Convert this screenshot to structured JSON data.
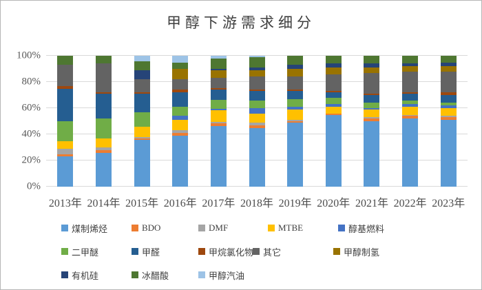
{
  "chart_data": {
    "type": "bar",
    "subtype": "stacked-100-percent",
    "title": "甲醇下游需求细分",
    "xlabel": "",
    "ylabel": "",
    "ylim": [
      0,
      100
    ],
    "grid": "horizontal",
    "legend_position": "bottom",
    "y_ticks": [
      "0%",
      "20%",
      "40%",
      "60%",
      "80%",
      "100%"
    ],
    "categories": [
      "2013年",
      "2014年",
      "2015年",
      "2016年",
      "2017年",
      "2018年",
      "2019年",
      "2020年",
      "2021年",
      "2022年",
      "2023年"
    ],
    "series": [
      {
        "name": "煤制烯烃",
        "color": "#5B9BD5",
        "values": [
          23,
          26,
          36,
          39,
          47,
          45,
          49,
          55,
          50,
          52,
          51
        ]
      },
      {
        "name": "BDO",
        "color": "#ED7D31",
        "values": [
          2,
          2,
          1,
          2,
          2,
          2,
          1,
          1,
          2,
          2,
          2
        ]
      },
      {
        "name": "DMF",
        "color": "#A5A5A5",
        "values": [
          4,
          2,
          1,
          2,
          1,
          2,
          1,
          0,
          1,
          1,
          1
        ]
      },
      {
        "name": "MTBE",
        "color": "#FFC000",
        "values": [
          6,
          7,
          8,
          8,
          9,
          7,
          8,
          5,
          6,
          6,
          6
        ]
      },
      {
        "name": "醇基燃料",
        "color": "#4472C4",
        "values": [
          0,
          0,
          0,
          3,
          1,
          4,
          2,
          2,
          1,
          2,
          2
        ]
      },
      {
        "name": "二甲醚",
        "color": "#70AD47",
        "values": [
          15,
          15,
          11,
          7,
          7,
          6,
          6,
          5,
          4,
          3,
          2
        ]
      },
      {
        "name": "甲醛",
        "color": "#255E91",
        "values": [
          25,
          19,
          14,
          11,
          8,
          7,
          6,
          4,
          6,
          5,
          6
        ]
      },
      {
        "name": "甲烷氯化物",
        "color": "#9E480E",
        "values": [
          2,
          1,
          1,
          2,
          1,
          1,
          1,
          1,
          1,
          1,
          2
        ]
      },
      {
        "name": "其它",
        "color": "#636363",
        "values": [
          16,
          22,
          10,
          8,
          8,
          10,
          10,
          13,
          16,
          16,
          16
        ]
      },
      {
        "name": "甲醇制氢",
        "color": "#997300",
        "values": [
          0,
          0,
          0,
          8,
          6,
          5,
          6,
          5,
          4,
          4,
          4
        ]
      },
      {
        "name": "有机硅",
        "color": "#264478",
        "values": [
          0,
          0,
          7,
          0,
          1,
          2,
          3,
          3,
          3,
          2,
          3
        ]
      },
      {
        "name": "冰醋酸",
        "color": "#4E7731",
        "values": [
          7,
          6,
          7,
          5,
          8,
          8,
          7,
          6,
          6,
          6,
          5
        ]
      },
      {
        "name": "甲醇汽油",
        "color": "#9DC3E6",
        "values": [
          0,
          0,
          4,
          5,
          2,
          1,
          0,
          0,
          0,
          0,
          0
        ]
      }
    ],
    "legend_rows": [
      5,
      5,
      3
    ]
  },
  "colors": {
    "gridline": "#d9d9d9",
    "title_text": "#3f3f3f",
    "axis_text": "#595959",
    "legend_text": "#404040",
    "frame_border": "#b5b5b5",
    "background": "#ffffff"
  }
}
